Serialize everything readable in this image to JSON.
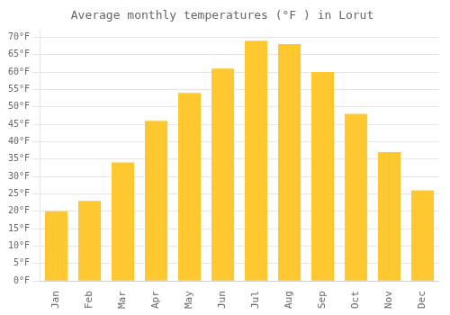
{
  "chart_data": {
    "type": "bar",
    "title": "Average monthly temperatures (°F ) in Lorut",
    "categories": [
      "Jan",
      "Feb",
      "Mar",
      "Apr",
      "May",
      "Jun",
      "Jul",
      "Aug",
      "Sep",
      "Oct",
      "Nov",
      "Dec"
    ],
    "values": [
      20,
      23,
      34,
      46,
      54,
      61,
      69,
      68,
      60,
      48,
      37,
      26
    ],
    "color": "#FFC830",
    "ylim": [
      0,
      72
    ],
    "yticks": [
      {
        "value": 0,
        "label": "0°F"
      },
      {
        "value": 5,
        "label": "5°F"
      },
      {
        "value": 10,
        "label": "10°F"
      },
      {
        "value": 15,
        "label": "15°F"
      },
      {
        "value": 20,
        "label": "20°F"
      },
      {
        "value": 25,
        "label": "25°F"
      },
      {
        "value": 30,
        "label": "30°F"
      },
      {
        "value": 35,
        "label": "35°F"
      },
      {
        "value": 40,
        "label": "40°F"
      },
      {
        "value": 45,
        "label": "45°F"
      },
      {
        "value": 50,
        "label": "50°F"
      },
      {
        "value": 55,
        "label": "55°F"
      },
      {
        "value": 60,
        "label": "60°F"
      },
      {
        "value": 65,
        "label": "65°F"
      },
      {
        "value": 70,
        "label": "70°F"
      }
    ],
    "grid": true
  }
}
